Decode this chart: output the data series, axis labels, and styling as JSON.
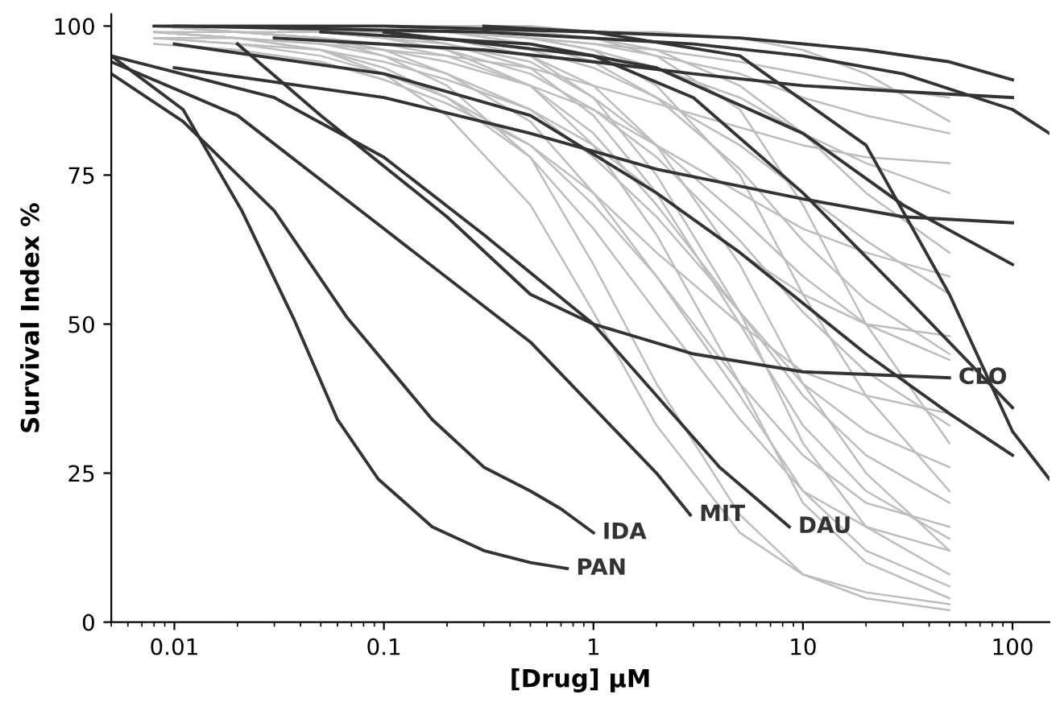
{
  "chart_data": {
    "type": "line",
    "xlabel": "[Drug] µM",
    "ylabel": "Survival Index %",
    "log": "x",
    "xlim": [
      0.005,
      150
    ],
    "xticks": [
      0.01,
      0.1,
      1,
      10,
      100
    ],
    "ylim": [
      0,
      102
    ],
    "yticks": [
      0,
      25,
      50,
      75,
      100
    ],
    "grid": false,
    "marker": "none",
    "line_style": "solid",
    "x": [
      0.008,
      0.02,
      0.05,
      0.1,
      0.2,
      0.5,
      1,
      2,
      5,
      10,
      20,
      50
    ],
    "series": [
      {
        "color": "#bdbdbd",
        "values": [
          100,
          100,
          99,
          98,
          96,
          90,
          80,
          65,
          40,
          20,
          10,
          4
        ]
      },
      {
        "color": "#bdbdbd",
        "values": [
          100,
          99,
          98,
          95,
          90,
          78,
          60,
          40,
          18,
          8,
          4,
          2
        ]
      },
      {
        "color": "#bdbdbd",
        "values": [
          99,
          98,
          96,
          92,
          85,
          70,
          52,
          33,
          15,
          8,
          5,
          3
        ]
      },
      {
        "color": "#bdbdbd",
        "values": [
          100,
          100,
          100,
          99,
          98,
          95,
          90,
          80,
          60,
          40,
          25,
          12
        ]
      },
      {
        "color": "#bdbdbd",
        "values": [
          100,
          100,
          99,
          99,
          97,
          93,
          85,
          72,
          50,
          33,
          22,
          14
        ]
      },
      {
        "color": "#bdbdbd",
        "values": [
          98,
          97,
          95,
          92,
          88,
          80,
          70,
          58,
          40,
          28,
          20,
          16
        ]
      },
      {
        "color": "#bdbdbd",
        "values": [
          100,
          100,
          100,
          100,
          99,
          98,
          96,
          90,
          75,
          55,
          38,
          22
        ]
      },
      {
        "color": "#bdbdbd",
        "values": [
          99,
          98,
          97,
          95,
          92,
          86,
          78,
          68,
          52,
          40,
          32,
          26
        ]
      },
      {
        "color": "#bdbdbd",
        "values": [
          100,
          99,
          99,
          98,
          96,
          92,
          86,
          78,
          64,
          52,
          42,
          33
        ]
      },
      {
        "color": "#bdbdbd",
        "values": [
          97,
          96,
          94,
          91,
          87,
          80,
          72,
          62,
          50,
          42,
          38,
          35
        ]
      },
      {
        "color": "#bdbdbd",
        "values": [
          100,
          100,
          100,
          99,
          99,
          97,
          94,
          88,
          76,
          64,
          54,
          45
        ]
      },
      {
        "color": "#bdbdbd",
        "values": [
          100,
          100,
          99,
          99,
          98,
          96,
          93,
          88,
          80,
          72,
          64,
          55
        ]
      },
      {
        "color": "#bdbdbd",
        "values": [
          99,
          99,
          98,
          96,
          94,
          90,
          86,
          80,
          72,
          66,
          62,
          58
        ]
      },
      {
        "color": "#bdbdbd",
        "values": [
          100,
          100,
          100,
          100,
          99,
          99,
          98,
          96,
          90,
          82,
          72,
          62
        ]
      },
      {
        "color": "#bdbdbd",
        "values": [
          100,
          100,
          100,
          99,
          99,
          98,
          96,
          93,
          88,
          82,
          77,
          72
        ]
      },
      {
        "color": "#bdbdbd",
        "values": [
          98,
          98,
          97,
          96,
          95,
          93,
          90,
          87,
          83,
          80,
          78,
          77
        ]
      },
      {
        "color": "#bdbdbd",
        "values": [
          100,
          100,
          100,
          100,
          100,
          100,
          99,
          99,
          98,
          96,
          92,
          84
        ]
      },
      {
        "color": "#bdbdbd",
        "values": [
          100,
          100,
          99,
          99,
          99,
          98,
          97,
          96,
          94,
          92,
          90,
          88
        ]
      },
      {
        "color": "#bdbdbd",
        "values": [
          100,
          99,
          98,
          96,
          92,
          84,
          72,
          58,
          38,
          22,
          12,
          6
        ]
      },
      {
        "color": "#bdbdbd",
        "values": [
          100,
          100,
          100,
          99,
          98,
          95,
          88,
          75,
          52,
          30,
          16,
          8
        ]
      },
      {
        "color": "#bdbdbd",
        "values": [
          99,
          98,
          96,
          93,
          88,
          78,
          66,
          52,
          34,
          22,
          16,
          12
        ]
      },
      {
        "color": "#bdbdbd",
        "values": [
          100,
          100,
          100,
          100,
          100,
          99,
          98,
          95,
          86,
          70,
          50,
          30
        ]
      },
      {
        "color": "#bdbdbd",
        "values": [
          100,
          100,
          99,
          98,
          97,
          94,
          88,
          80,
          68,
          58,
          50,
          44
        ]
      },
      {
        "color": "#bdbdbd",
        "values": [
          98,
          97,
          96,
          94,
          91,
          86,
          80,
          72,
          62,
          55,
          50,
          48
        ]
      },
      {
        "color": "#bdbdbd",
        "values": [
          100,
          100,
          100,
          100,
          99,
          98,
          97,
          95,
          92,
          88,
          85,
          82
        ]
      },
      {
        "color": "#bdbdbd",
        "values": [
          100,
          99,
          98,
          97,
          95,
          90,
          82,
          70,
          52,
          38,
          28,
          20
        ]
      },
      {
        "name": "PAN",
        "color": "#333333",
        "x": [
          0.005,
          0.011,
          0.021,
          0.037,
          0.06,
          0.094,
          0.17,
          0.3,
          0.5,
          0.75
        ],
        "values": [
          95,
          86,
          69,
          51,
          34,
          24,
          16,
          12,
          10,
          9
        ]
      },
      {
        "name": "IDA",
        "color": "#333333",
        "x": [
          0.005,
          0.011,
          0.03,
          0.067,
          0.17,
          0.3,
          0.5,
          0.7,
          1.0
        ],
        "values": [
          92,
          84,
          69,
          51,
          34,
          26,
          22,
          19,
          15
        ]
      },
      {
        "name": "MIT",
        "color": "#333333",
        "x": [
          0.005,
          0.02,
          0.1,
          0.3,
          0.5,
          1,
          2,
          2.9
        ],
        "values": [
          94,
          85,
          66,
          53,
          47,
          36,
          25,
          18
        ]
      },
      {
        "name": "DAU",
        "color": "#333333",
        "x": [
          0.005,
          0.03,
          0.1,
          0.3,
          1,
          2,
          4,
          8.6
        ],
        "values": [
          95,
          88,
          78,
          65,
          50,
          38,
          26,
          16
        ]
      },
      {
        "name": "CLO",
        "color": "#333333",
        "x": [
          0.02,
          0.05,
          0.2,
          0.5,
          1,
          3,
          10,
          50
        ],
        "values": [
          97,
          85,
          68,
          55,
          50,
          45,
          42,
          41
        ]
      },
      {
        "color": "#333333",
        "x": [
          0.008,
          0.1,
          1,
          5,
          20,
          50,
          100
        ],
        "values": [
          100,
          100,
          99,
          98,
          96,
          94,
          91
        ]
      },
      {
        "color": "#333333",
        "x": [
          0.03,
          0.3,
          1,
          3,
          10,
          30,
          100
        ],
        "values": [
          98,
          96,
          94,
          92,
          90,
          89,
          88
        ]
      },
      {
        "color": "#333333",
        "x": [
          0.01,
          0.3,
          3,
          10,
          30,
          100,
          150
        ],
        "values": [
          100,
          99,
          97,
          95,
          92,
          86,
          82
        ]
      },
      {
        "color": "#333333",
        "x": [
          0.01,
          0.1,
          0.5,
          2,
          10,
          30,
          100
        ],
        "values": [
          93,
          88,
          82,
          76,
          71,
          68,
          67
        ]
      },
      {
        "color": "#333333",
        "x": [
          0.05,
          0.5,
          2,
          10,
          30,
          100
        ],
        "values": [
          99,
          97,
          93,
          82,
          70,
          60
        ]
      },
      {
        "color": "#333333",
        "x": [
          0.1,
          1,
          3,
          10,
          30,
          100
        ],
        "values": [
          99,
          95,
          88,
          72,
          55,
          36
        ]
      },
      {
        "color": "#333333",
        "x": [
          0.01,
          0.1,
          0.5,
          2,
          5,
          20,
          50,
          100
        ],
        "values": [
          97,
          92,
          85,
          72,
          62,
          45,
          35,
          28
        ]
      },
      {
        "color": "#333333",
        "x": [
          0.3,
          1,
          5,
          20,
          50,
          100,
          150
        ],
        "values": [
          100,
          99,
          95,
          80,
          55,
          32,
          24
        ]
      }
    ]
  }
}
